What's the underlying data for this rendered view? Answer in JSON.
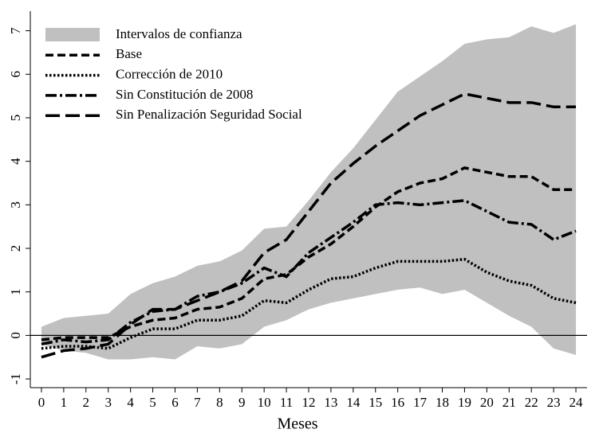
{
  "chart_data": {
    "type": "line",
    "x_label": "Meses",
    "x": [
      0,
      1,
      2,
      3,
      4,
      5,
      6,
      7,
      8,
      9,
      10,
      11,
      12,
      13,
      14,
      15,
      16,
      17,
      18,
      19,
      20,
      21,
      22,
      23,
      24
    ],
    "xlim": [
      -0.5,
      24.5
    ],
    "xticks": [
      0,
      1,
      2,
      3,
      4,
      5,
      6,
      7,
      8,
      9,
      10,
      11,
      12,
      13,
      14,
      15,
      16,
      17,
      18,
      19,
      20,
      21,
      22,
      23,
      24
    ],
    "ylim": [
      -1.2,
      7.45
    ],
    "yticks": [
      -1,
      0,
      1,
      2,
      3,
      4,
      5,
      6,
      7
    ],
    "hline": 0,
    "band": {
      "name": "Intervalos de confianza",
      "color": "#c0c0c0",
      "upper": [
        0.2,
        0.4,
        0.45,
        0.5,
        0.95,
        1.2,
        1.35,
        1.6,
        1.7,
        1.95,
        2.45,
        2.5,
        3.1,
        3.75,
        4.3,
        4.95,
        5.6,
        5.95,
        6.3,
        6.7,
        6.8,
        6.85,
        7.1,
        6.95,
        7.15
      ],
      "lower": [
        -0.2,
        -0.35,
        -0.4,
        -0.55,
        -0.55,
        -0.5,
        -0.55,
        -0.25,
        -0.3,
        -0.2,
        0.2,
        0.35,
        0.6,
        0.75,
        0.85,
        0.95,
        1.05,
        1.1,
        0.95,
        1.05,
        0.75,
        0.45,
        0.2,
        -0.3,
        -0.45
      ]
    },
    "series": [
      {
        "name": "Base",
        "color": "#000000",
        "style": "dash",
        "values": [
          -0.1,
          -0.05,
          -0.05,
          -0.05,
          0.2,
          0.35,
          0.4,
          0.6,
          0.65,
          0.85,
          1.3,
          1.4,
          1.8,
          2.1,
          2.5,
          2.95,
          3.3,
          3.5,
          3.6,
          3.85,
          3.75,
          3.65,
          3.65,
          3.35,
          3.35
        ]
      },
      {
        "name": "Corrección de 2010",
        "color": "#000000",
        "style": "dot",
        "values": [
          -0.3,
          -0.25,
          -0.25,
          -0.3,
          -0.05,
          0.15,
          0.15,
          0.35,
          0.35,
          0.45,
          0.8,
          0.75,
          1.05,
          1.3,
          1.35,
          1.55,
          1.7,
          1.7,
          1.7,
          1.75,
          1.45,
          1.25,
          1.15,
          0.85,
          0.75
        ]
      },
      {
        "name": "Sin Constitución de 2008",
        "color": "#000000",
        "style": "dashdot",
        "values": [
          -0.2,
          -0.1,
          -0.15,
          -0.1,
          0.3,
          0.55,
          0.6,
          0.9,
          1.0,
          1.2,
          1.55,
          1.35,
          1.9,
          2.25,
          2.6,
          3.0,
          3.05,
          3.0,
          3.05,
          3.1,
          2.85,
          2.6,
          2.55,
          2.2,
          2.4
        ]
      },
      {
        "name": "Sin Penalización Seguridad Social",
        "color": "#000000",
        "style": "longdash",
        "values": [
          -0.5,
          -0.35,
          -0.3,
          -0.2,
          0.25,
          0.6,
          0.6,
          0.8,
          1.0,
          1.25,
          1.9,
          2.2,
          2.85,
          3.5,
          3.95,
          4.35,
          4.7,
          5.05,
          5.3,
          5.55,
          5.45,
          5.35,
          5.35,
          5.25,
          5.25
        ]
      }
    ]
  }
}
